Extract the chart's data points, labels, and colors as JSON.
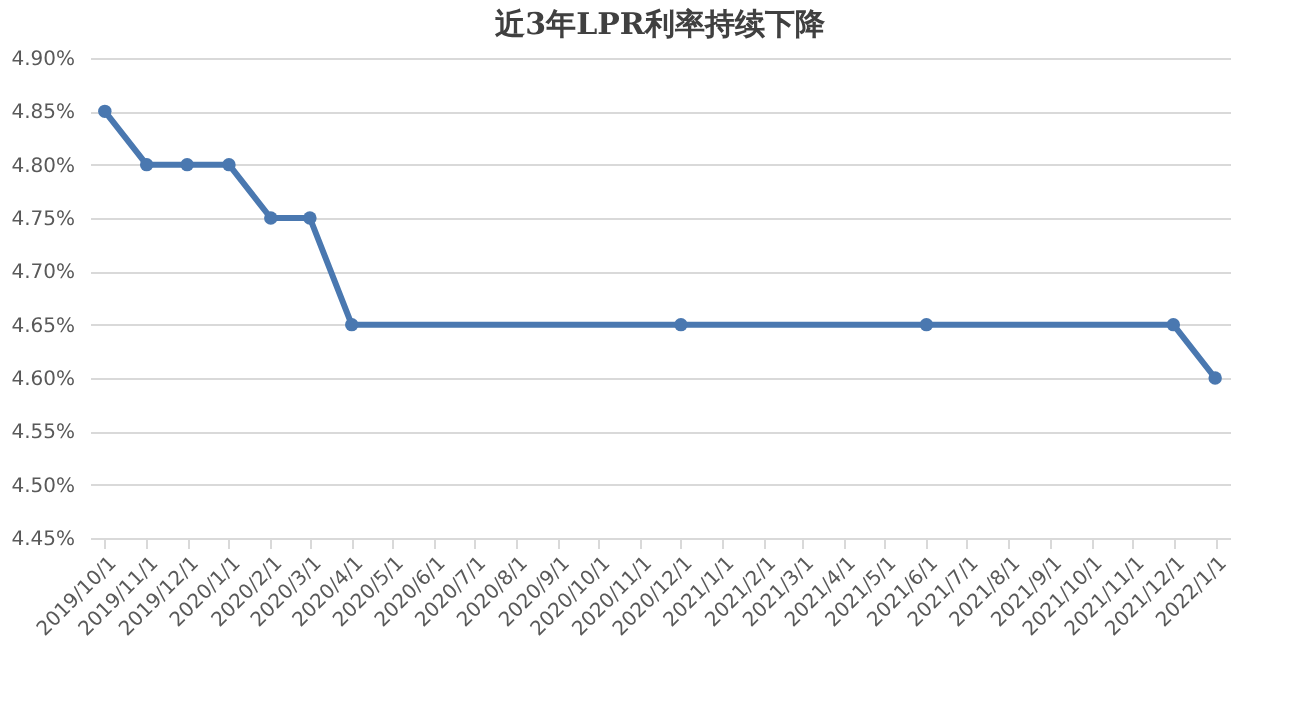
{
  "chart_data": {
    "type": "line",
    "title": "近3年LPR利率持续下降",
    "x": [
      "2019-10-01",
      "2019-11-01",
      "2019-12-01",
      "2020-01-01",
      "2020-02-01",
      "2020-03-01",
      "2020-04-01",
      "2020-12-01",
      "2021-06-01",
      "2021-12-01",
      "2022-01-01"
    ],
    "series": [
      {
        "color": "#4a78b0",
        "values": [
          4.85,
          4.8,
          4.8,
          4.8,
          4.75,
          4.75,
          4.65,
          4.65,
          4.65,
          4.65,
          4.6
        ]
      }
    ],
    "xlim": [
      "2019-09-20",
      "2022-01-12"
    ],
    "xticks": [
      {
        "value": "2019-10-01",
        "label": "2019/10/1"
      },
      {
        "value": "2019-11-01",
        "label": "2019/11/1"
      },
      {
        "value": "2019-12-01",
        "label": "2019/12/1"
      },
      {
        "value": "2020-01-01",
        "label": "2020/1/1"
      },
      {
        "value": "2020-02-01",
        "label": "2020/2/1"
      },
      {
        "value": "2020-03-01",
        "label": "2020/3/1"
      },
      {
        "value": "2020-04-01",
        "label": "2020/4/1"
      },
      {
        "value": "2020-05-01",
        "label": "2020/5/1"
      },
      {
        "value": "2020-06-01",
        "label": "2020/6/1"
      },
      {
        "value": "2020-07-01",
        "label": "2020/7/1"
      },
      {
        "value": "2020-08-01",
        "label": "2020/8/1"
      },
      {
        "value": "2020-09-01",
        "label": "2020/9/1"
      },
      {
        "value": "2020-10-01",
        "label": "2020/10/1"
      },
      {
        "value": "2020-11-01",
        "label": "2020/11/1"
      },
      {
        "value": "2020-12-01",
        "label": "2020/12/1"
      },
      {
        "value": "2021-01-01",
        "label": "2021/1/1"
      },
      {
        "value": "2021-02-01",
        "label": "2021/2/1"
      },
      {
        "value": "2021-03-01",
        "label": "2021/3/1"
      },
      {
        "value": "2021-04-01",
        "label": "2021/4/1"
      },
      {
        "value": "2021-05-01",
        "label": "2021/5/1"
      },
      {
        "value": "2021-06-01",
        "label": "2021/6/1"
      },
      {
        "value": "2021-07-01",
        "label": "2021/7/1"
      },
      {
        "value": "2021-08-01",
        "label": "2021/8/1"
      },
      {
        "value": "2021-09-01",
        "label": "2021/9/1"
      },
      {
        "value": "2021-10-01",
        "label": "2021/10/1"
      },
      {
        "value": "2021-11-01",
        "label": "2021/11/1"
      },
      {
        "value": "2021-12-01",
        "label": "2021/12/1"
      },
      {
        "value": "2022-01-01",
        "label": "2022/1/1"
      }
    ],
    "ylim": [
      4.45,
      4.9
    ],
    "yticks": [
      {
        "value": 4.45,
        "label": "4.45%"
      },
      {
        "value": 4.5,
        "label": "4.50%"
      },
      {
        "value": 4.55,
        "label": "4.55%"
      },
      {
        "value": 4.6,
        "label": "4.60%"
      },
      {
        "value": 4.65,
        "label": "4.65%"
      },
      {
        "value": 4.7,
        "label": "4.70%"
      },
      {
        "value": 4.75,
        "label": "4.75%"
      },
      {
        "value": 4.8,
        "label": "4.80%"
      },
      {
        "value": 4.85,
        "label": "4.85%"
      },
      {
        "value": 4.9,
        "label": "4.90%"
      }
    ],
    "grid": "y",
    "marker": "circle",
    "line_style": "solid"
  }
}
